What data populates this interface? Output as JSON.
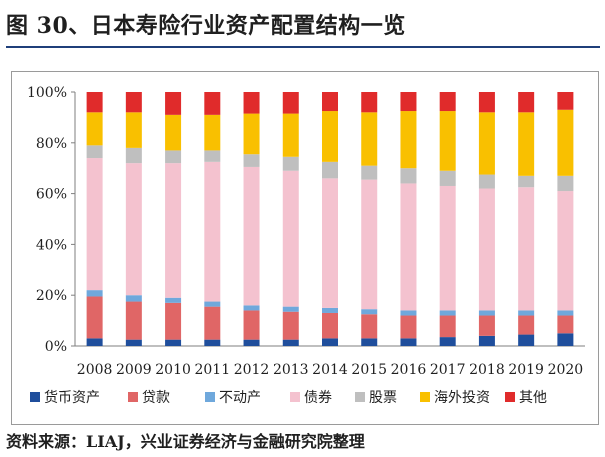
{
  "header": {
    "title": "图 30、日本寿险行业资产配置结构一览"
  },
  "footer": {
    "source": "资料来源：LIAJ，兴业证券经济与金融研究院整理"
  },
  "chart_data": {
    "type": "bar",
    "stacked": true,
    "categories": [
      "2008",
      "2009",
      "2010",
      "2011",
      "2012",
      "2013",
      "2014",
      "2015",
      "2016",
      "2017",
      "2018",
      "2019",
      "2020"
    ],
    "ylim": [
      0,
      100
    ],
    "yticks": [
      "0%",
      "20%",
      "40%",
      "60%",
      "80%",
      "100%"
    ],
    "legend_position": "bottom",
    "series": [
      {
        "name": "货币资产",
        "color": "#1f4e9c",
        "values": [
          3,
          2.5,
          2.5,
          2.5,
          2.5,
          2.5,
          3,
          3,
          3,
          3.5,
          4,
          4.5,
          5
        ]
      },
      {
        "name": "贷款",
        "color": "#e06666",
        "values": [
          16.5,
          15,
          14.5,
          13,
          11.5,
          11,
          10,
          9.5,
          9,
          8.5,
          8,
          7.5,
          7
        ]
      },
      {
        "name": "不动产",
        "color": "#6fa8dc",
        "values": [
          2.5,
          2.5,
          2,
          2,
          2,
          2,
          2,
          2,
          2,
          2,
          2,
          2,
          2
        ]
      },
      {
        "name": "债券",
        "color": "#f4c2cf",
        "values": [
          52,
          52,
          53,
          55,
          54.5,
          53.5,
          51,
          51,
          50,
          49,
          48,
          48.5,
          47
        ]
      },
      {
        "name": "股票",
        "color": "#bfbfbf",
        "values": [
          5,
          6,
          5,
          4.5,
          5,
          5.5,
          6.5,
          5.5,
          6,
          6,
          5.5,
          4.5,
          6
        ]
      },
      {
        "name": "海外投资",
        "color": "#f9c000",
        "values": [
          13,
          14,
          14,
          14,
          16,
          17,
          20,
          21,
          22.5,
          23.5,
          24.5,
          25,
          26
        ]
      },
      {
        "name": "其他",
        "color": "#e02b2b",
        "values": [
          8,
          8,
          9,
          9,
          8.5,
          8.5,
          7.5,
          8,
          7.5,
          7.5,
          8,
          8,
          7
        ]
      }
    ]
  }
}
